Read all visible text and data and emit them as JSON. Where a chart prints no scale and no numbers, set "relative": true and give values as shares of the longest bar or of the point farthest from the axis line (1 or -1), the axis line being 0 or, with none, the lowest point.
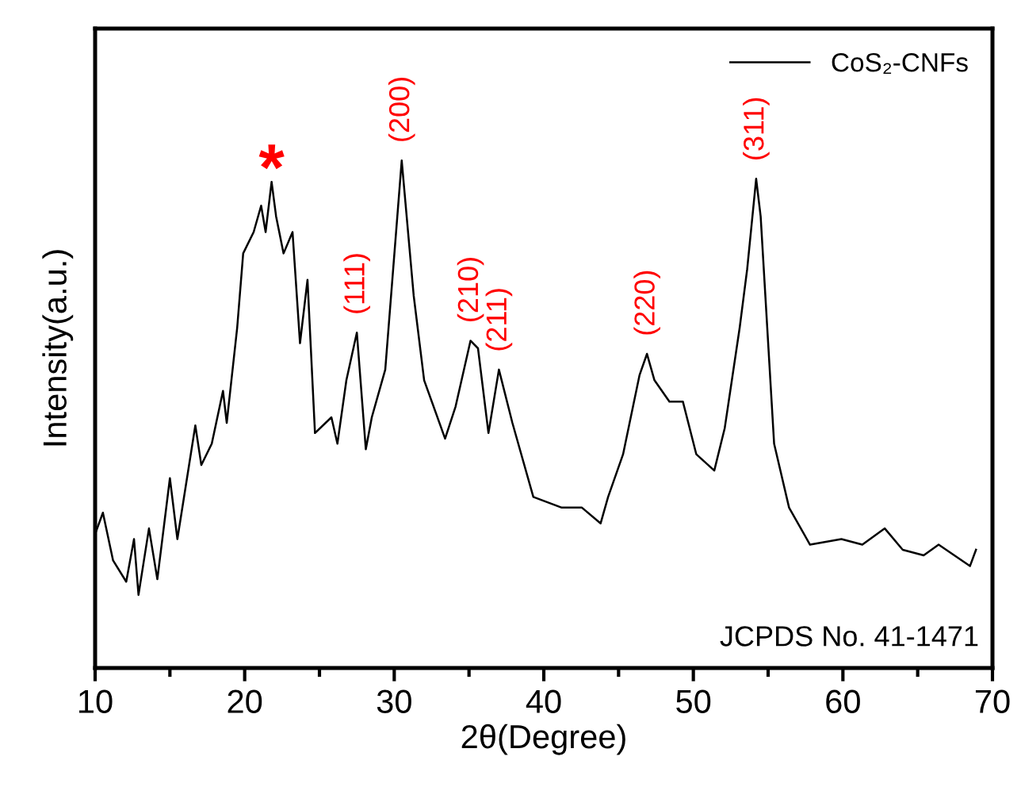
{
  "chart_data": {
    "type": "line",
    "relative": true,
    "xlabel": "2θ(Degree)",
    "ylabel": "Intensity(a.u.)",
    "xlim": [
      10,
      70
    ],
    "xticks": [
      10,
      20,
      30,
      40,
      50,
      60,
      70
    ],
    "tick_labels": "x",
    "legend": "top right",
    "grid": false,
    "marker": "none",
    "line_style": "solid",
    "series": [
      {
        "name": "CoS₂-CNFs",
        "color": "#000000",
        "x": [
          10.0,
          10.52,
          11.2,
          12.08,
          12.6,
          12.9,
          13.6,
          14.16,
          15.0,
          15.5,
          16.7,
          17.1,
          17.8,
          18.55,
          18.8,
          19.5,
          19.9,
          20.6,
          21.1,
          21.4,
          21.8,
          22.1,
          22.6,
          23.2,
          23.7,
          24.2,
          24.7,
          25.8,
          26.2,
          26.8,
          27.5,
          28.1,
          28.5,
          29.4,
          30.5,
          31.3,
          32.0,
          33.4,
          34.1,
          35.1,
          35.6,
          36.3,
          37.0,
          37.9,
          39.3,
          41.2,
          42.55,
          43.8,
          44.3,
          45.3,
          46.4,
          46.9,
          47.4,
          48.4,
          49.3,
          50.2,
          51.4,
          52.1,
          53.1,
          53.6,
          54.2,
          54.5,
          55.4,
          56.4,
          57.8,
          59.9,
          61.3,
          62.8,
          64.0,
          65.4,
          66.4,
          68.5,
          68.9
        ],
        "values": [
          0.264,
          0.306,
          0.212,
          0.17,
          0.254,
          0.144,
          0.275,
          0.175,
          0.374,
          0.254,
          0.478,
          0.4,
          0.442,
          0.546,
          0.483,
          0.671,
          0.817,
          0.859,
          0.911,
          0.859,
          0.958,
          0.89,
          0.817,
          0.859,
          0.64,
          0.765,
          0.463,
          0.494,
          0.442,
          0.567,
          0.661,
          0.431,
          0.494,
          0.588,
          1.0,
          0.734,
          0.567,
          0.452,
          0.515,
          0.645,
          0.63,
          0.463,
          0.588,
          0.483,
          0.337,
          0.316,
          0.316,
          0.285,
          0.337,
          0.421,
          0.577,
          0.619,
          0.567,
          0.525,
          0.525,
          0.421,
          0.389,
          0.473,
          0.671,
          0.786,
          0.964,
          0.89,
          0.442,
          0.316,
          0.243,
          0.254,
          0.243,
          0.275,
          0.233,
          0.222,
          0.243,
          0.201,
          0.233
        ]
      }
    ],
    "annotations": [
      {
        "text": "*",
        "x": 21.8,
        "y": 0.958
      },
      {
        "text": "(111)",
        "x": 27.5,
        "y": 0.661
      },
      {
        "text": "(200)",
        "x": 30.5,
        "y": 1.0
      },
      {
        "text": "(210)",
        "x": 35.1,
        "y": 0.645
      },
      {
        "text": "(211)",
        "x": 37.0,
        "y": 0.588
      },
      {
        "text": "(220)",
        "x": 46.9,
        "y": 0.619
      },
      {
        "text": "(311)",
        "x": 54.2,
        "y": 0.964
      },
      "JCPDS No. 41-1471"
    ]
  }
}
